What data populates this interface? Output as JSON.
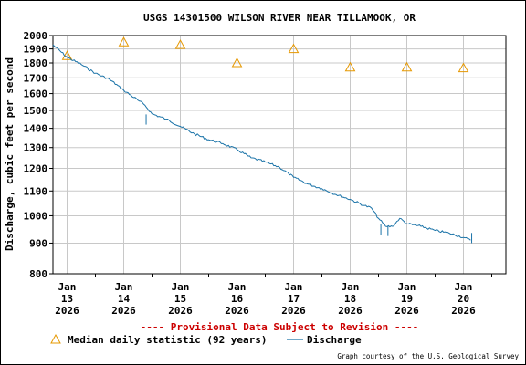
{
  "chart_data": {
    "type": "line",
    "title": "USGS 14301500 WILSON RIVER NEAR TILLAMOOK, OR",
    "ylabel": "Discharge, cubic feet per second",
    "xlabel": "",
    "y_scale": "log",
    "ylim": [
      800,
      2000
    ],
    "y_ticks": [
      800,
      900,
      1000,
      1100,
      1200,
      1300,
      1400,
      1500,
      1600,
      1700,
      1800,
      1900,
      2000
    ],
    "xlim": [
      "2026-01-12T18:00",
      "2026-01-20T18:00"
    ],
    "x_ticks": [
      {
        "date": "2026-01-13",
        "label": [
          "Jan",
          "13",
          "2026"
        ]
      },
      {
        "date": "2026-01-14",
        "label": [
          "Jan",
          "14",
          "2026"
        ]
      },
      {
        "date": "2026-01-15",
        "label": [
          "Jan",
          "15",
          "2026"
        ]
      },
      {
        "date": "2026-01-16",
        "label": [
          "Jan",
          "16",
          "2026"
        ]
      },
      {
        "date": "2026-01-17",
        "label": [
          "Jan",
          "17",
          "2026"
        ]
      },
      {
        "date": "2026-01-18",
        "label": [
          "Jan",
          "18",
          "2026"
        ]
      },
      {
        "date": "2026-01-19",
        "label": [
          "Jan",
          "19",
          "2026"
        ]
      },
      {
        "date": "2026-01-20",
        "label": [
          "Jan",
          "20",
          "2026"
        ]
      }
    ],
    "grid": true,
    "series": [
      {
        "name": "Median daily statistic (92 years)",
        "marker": "triangle",
        "color": "#e69800",
        "points": [
          {
            "x": "2026-01-13",
            "y": 1850
          },
          {
            "x": "2026-01-14",
            "y": 1950
          },
          {
            "x": "2026-01-15",
            "y": 1930
          },
          {
            "x": "2026-01-16",
            "y": 1800
          },
          {
            "x": "2026-01-17",
            "y": 1900
          },
          {
            "x": "2026-01-18",
            "y": 1770
          },
          {
            "x": "2026-01-19",
            "y": 1770
          },
          {
            "x": "2026-01-20",
            "y": 1765
          }
        ]
      },
      {
        "name": "Discharge",
        "marker": "line",
        "color": "#1a73a8",
        "points": [
          {
            "x": "2026-01-12T18:00",
            "y": 1930
          },
          {
            "x": "2026-01-13T00:00",
            "y": 1840
          },
          {
            "x": "2026-01-13T06:00",
            "y": 1790
          },
          {
            "x": "2026-01-13T12:00",
            "y": 1730
          },
          {
            "x": "2026-01-13T18:00",
            "y": 1690
          },
          {
            "x": "2026-01-14T00:00",
            "y": 1620
          },
          {
            "x": "2026-01-14T06:00",
            "y": 1560
          },
          {
            "x": "2026-01-14T09:00",
            "y": 1530
          },
          {
            "x": "2026-01-14T12:00",
            "y": 1480
          },
          {
            "x": "2026-01-14T18:00",
            "y": 1450
          },
          {
            "x": "2026-01-15T00:00",
            "y": 1410
          },
          {
            "x": "2026-01-15T06:00",
            "y": 1370
          },
          {
            "x": "2026-01-15T12:00",
            "y": 1340
          },
          {
            "x": "2026-01-15T18:00",
            "y": 1320
          },
          {
            "x": "2026-01-16T00:00",
            "y": 1290
          },
          {
            "x": "2026-01-16T06:00",
            "y": 1250
          },
          {
            "x": "2026-01-16T12:00",
            "y": 1230
          },
          {
            "x": "2026-01-16T18:00",
            "y": 1205
          },
          {
            "x": "2026-01-17T00:00",
            "y": 1160
          },
          {
            "x": "2026-01-17T06:00",
            "y": 1130
          },
          {
            "x": "2026-01-17T12:00",
            "y": 1110
          },
          {
            "x": "2026-01-17T18:00",
            "y": 1085
          },
          {
            "x": "2026-01-18T00:00",
            "y": 1065
          },
          {
            "x": "2026-01-18T06:00",
            "y": 1040
          },
          {
            "x": "2026-01-18T09:00",
            "y": 1030
          },
          {
            "x": "2026-01-18T12:00",
            "y": 990
          },
          {
            "x": "2026-01-18T15:00",
            "y": 960
          },
          {
            "x": "2026-01-18T18:00",
            "y": 960
          },
          {
            "x": "2026-01-18T21:00",
            "y": 990
          },
          {
            "x": "2026-01-19T00:00",
            "y": 970
          },
          {
            "x": "2026-01-19T06:00",
            "y": 960
          },
          {
            "x": "2026-01-19T12:00",
            "y": 945
          },
          {
            "x": "2026-01-19T18:00",
            "y": 935
          },
          {
            "x": "2026-01-20T00:00",
            "y": 920
          },
          {
            "x": "2026-01-20T03:00",
            "y": 910
          }
        ],
        "spikes": [
          {
            "x": "2026-01-14T09:30",
            "y": 1420
          },
          {
            "x": "2026-01-18T13:00",
            "y": 930
          },
          {
            "x": "2026-01-18T16:00",
            "y": 925
          },
          {
            "x": "2026-01-20T03:30",
            "y": 900
          }
        ]
      }
    ]
  },
  "legend": {
    "median_label": "Median daily statistic (92 years)",
    "discharge_label": "Discharge"
  },
  "notes": {
    "provisional": "---- Provisional Data Subject to Revision ----",
    "credit": "Graph courtesy of the U.S. Geological Survey"
  },
  "colors": {
    "discharge": "#1a73a8",
    "median": "#e69800",
    "provisional": "#cc0000",
    "grid": "#c8c8c8"
  }
}
